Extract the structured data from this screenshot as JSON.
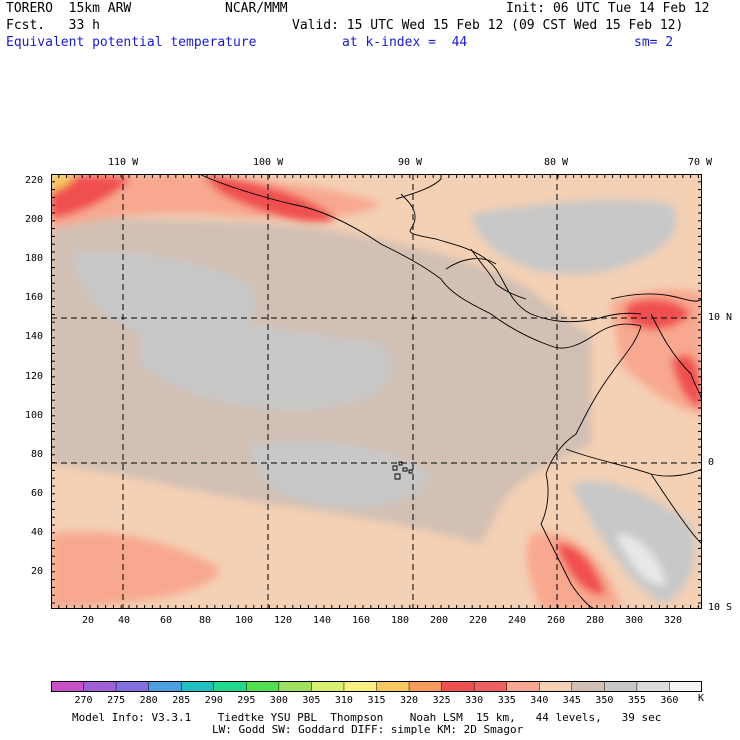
{
  "header": {
    "model": "TORERO  15km ARW",
    "org": "NCAR/MMM",
    "init": "Init: 06 UTC Tue 14 Feb 12",
    "fcst": "Fcst.   33 h",
    "valid": "Valid: 15 UTC Wed 15 Feb 12 (09 CST Wed 15 Feb 12)",
    "field": "Equivalent potential temperature",
    "level": "at k-index =  44",
    "smooth": "sm= 2"
  },
  "axes": {
    "x_ticks": [
      "20",
      "40",
      "60",
      "80",
      "100",
      "120",
      "140",
      "160",
      "180",
      "200",
      "220",
      "240",
      "260",
      "280",
      "300",
      "320"
    ],
    "y_ticks": [
      "20",
      "40",
      "60",
      "80",
      "100",
      "120",
      "140",
      "160",
      "180",
      "200",
      "220"
    ],
    "lon_labels": [
      "110 W",
      "100 W",
      "90 W",
      "80 W",
      "70 W"
    ],
    "lat_labels": [
      "10 N",
      "0",
      "10 S"
    ]
  },
  "colorbar": {
    "ticks": [
      "270",
      "275",
      "280",
      "285",
      "290",
      "295",
      "300",
      "305",
      "310",
      "315",
      "320",
      "325",
      "330",
      "335",
      "340",
      "345",
      "350",
      "355",
      "360"
    ],
    "unit": "K",
    "colors": [
      "#c850c8",
      "#a060d8",
      "#8070e0",
      "#4aa0e0",
      "#20c0c0",
      "#20d890",
      "#50e050",
      "#a0e060",
      "#d8f070",
      "#f8f080",
      "#f8c860",
      "#f89a5a",
      "#f05050",
      "#f06060",
      "#f8a890",
      "#f4d0b4",
      "#d2c0b4",
      "#c8c8c8",
      "#dcdcdc",
      "#f4f4f4"
    ]
  },
  "footer": {
    "line1": "Model Info: V3.3.1    Tiedtke YSU PBL  Thompson    Noah LSM  15 km,   44 levels,   39 sec",
    "line2": "LW: Godd SW: Goddard DIFF: simple KM: 2D Smagor"
  }
}
